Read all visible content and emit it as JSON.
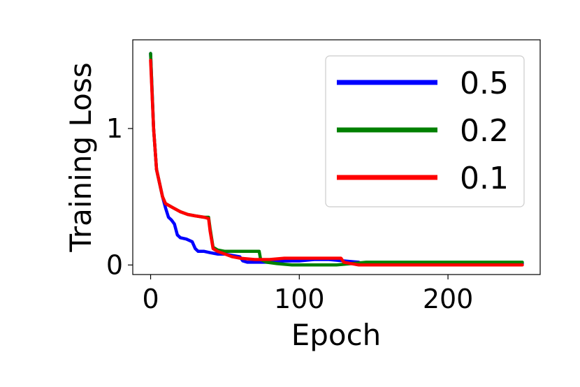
{
  "chart_data": {
    "type": "line",
    "title": "",
    "xlabel": "Epoch",
    "ylabel": "Training Loss",
    "xlim": [
      -12,
      262
    ],
    "ylim": [
      -0.07,
      1.65
    ],
    "xticks": [
      {
        "value": 0,
        "label": "0"
      },
      {
        "value": 100,
        "label": "100"
      },
      {
        "value": 200,
        "label": "200"
      }
    ],
    "yticks": [
      {
        "value": 0,
        "label": "0"
      },
      {
        "value": 1,
        "label": "1"
      }
    ],
    "grid": false,
    "legend": "top-right",
    "series": [
      {
        "name": "0.5",
        "color": "#0000ff",
        "points": [
          [
            0,
            1.55
          ],
          [
            2,
            1.0
          ],
          [
            4,
            0.7
          ],
          [
            6,
            0.6
          ],
          [
            8,
            0.5
          ],
          [
            10,
            0.42
          ],
          [
            12,
            0.35
          ],
          [
            14,
            0.33
          ],
          [
            16,
            0.3
          ],
          [
            18,
            0.22
          ],
          [
            20,
            0.2
          ],
          [
            24,
            0.19
          ],
          [
            28,
            0.17
          ],
          [
            30,
            0.12
          ],
          [
            32,
            0.1
          ],
          [
            36,
            0.1
          ],
          [
            40,
            0.09
          ],
          [
            45,
            0.08
          ],
          [
            50,
            0.08
          ],
          [
            55,
            0.07
          ],
          [
            60,
            0.06
          ],
          [
            62,
            0.03
          ],
          [
            65,
            0.02
          ],
          [
            70,
            0.02
          ],
          [
            80,
            0.02
          ],
          [
            90,
            0.03
          ],
          [
            100,
            0.03
          ],
          [
            110,
            0.04
          ],
          [
            120,
            0.04
          ],
          [
            130,
            0.03
          ],
          [
            140,
            0.02
          ],
          [
            142,
            0.01
          ],
          [
            150,
            0.01
          ],
          [
            170,
            0.01
          ],
          [
            200,
            0.01
          ],
          [
            230,
            0.01
          ],
          [
            250,
            0.01
          ]
        ]
      },
      {
        "name": "0.2",
        "color": "#008000",
        "points": [
          [
            0,
            1.55
          ],
          [
            2,
            1.0
          ],
          [
            4,
            0.7
          ],
          [
            6,
            0.6
          ],
          [
            8,
            0.5
          ],
          [
            10,
            0.45
          ],
          [
            15,
            0.42
          ],
          [
            20,
            0.39
          ],
          [
            25,
            0.37
          ],
          [
            30,
            0.36
          ],
          [
            36,
            0.35
          ],
          [
            39,
            0.35
          ],
          [
            40,
            0.27
          ],
          [
            42,
            0.13
          ],
          [
            45,
            0.11
          ],
          [
            50,
            0.1
          ],
          [
            55,
            0.1
          ],
          [
            60,
            0.1
          ],
          [
            65,
            0.1
          ],
          [
            70,
            0.1
          ],
          [
            73,
            0.1
          ],
          [
            74,
            0.04
          ],
          [
            78,
            0.02
          ],
          [
            85,
            0.01
          ],
          [
            95,
            0.0
          ],
          [
            110,
            0.0
          ],
          [
            125,
            0.0
          ],
          [
            135,
            0.01
          ],
          [
            145,
            0.02
          ],
          [
            160,
            0.02
          ],
          [
            180,
            0.02
          ],
          [
            200,
            0.02
          ],
          [
            220,
            0.02
          ],
          [
            240,
            0.02
          ],
          [
            250,
            0.02
          ]
        ]
      },
      {
        "name": "0.1",
        "color": "#ff0000",
        "points": [
          [
            0,
            1.5
          ],
          [
            2,
            1.0
          ],
          [
            4,
            0.7
          ],
          [
            6,
            0.6
          ],
          [
            8,
            0.5
          ],
          [
            10,
            0.45
          ],
          [
            15,
            0.42
          ],
          [
            20,
            0.39
          ],
          [
            25,
            0.37
          ],
          [
            30,
            0.36
          ],
          [
            36,
            0.35
          ],
          [
            39,
            0.34
          ],
          [
            40,
            0.25
          ],
          [
            42,
            0.12
          ],
          [
            45,
            0.1
          ],
          [
            50,
            0.08
          ],
          [
            55,
            0.06
          ],
          [
            60,
            0.05
          ],
          [
            70,
            0.04
          ],
          [
            80,
            0.04
          ],
          [
            90,
            0.05
          ],
          [
            100,
            0.05
          ],
          [
            110,
            0.05
          ],
          [
            120,
            0.05
          ],
          [
            128,
            0.05
          ],
          [
            130,
            0.02
          ],
          [
            135,
            0.01
          ],
          [
            140,
            0.0
          ],
          [
            160,
            0.0
          ],
          [
            180,
            0.0
          ],
          [
            200,
            0.0
          ],
          [
            220,
            0.0
          ],
          [
            240,
            0.0
          ],
          [
            250,
            0.0
          ]
        ]
      }
    ]
  }
}
